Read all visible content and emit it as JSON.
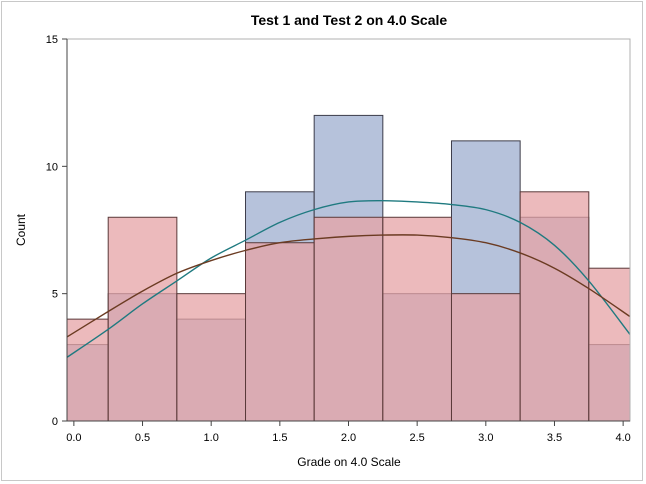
{
  "chart_data": {
    "type": "bar",
    "title": "Test 1 and Test 2 on 4.0 Scale",
    "xlabel": "Grade on 4.0 Scale",
    "ylabel": "Count",
    "xlim": [
      -0.05,
      4.05
    ],
    "ylim": [
      0,
      15
    ],
    "x_ticks": [
      "0.0",
      "0.5",
      "1.0",
      "1.5",
      "2.0",
      "2.5",
      "3.0",
      "3.5",
      "4.0"
    ],
    "y_ticks": [
      "0",
      "5",
      "10",
      "15"
    ],
    "grid": false,
    "legend": "none",
    "series": [
      {
        "color": "#a9b7d5",
        "edge_color": "#3d3d4a",
        "opacity": 0.85,
        "bins": [
          {
            "from": -0.05,
            "to": 0.25,
            "value": 3
          },
          {
            "from": 0.25,
            "to": 0.75,
            "value": 5
          },
          {
            "from": 0.75,
            "to": 1.25,
            "value": 4
          },
          {
            "from": 1.25,
            "to": 1.75,
            "value": 9
          },
          {
            "from": 1.75,
            "to": 2.25,
            "value": 12
          },
          {
            "from": 2.25,
            "to": 2.75,
            "value": 5
          },
          {
            "from": 2.75,
            "to": 3.25,
            "value": 11
          },
          {
            "from": 3.25,
            "to": 3.75,
            "value": 8
          },
          {
            "from": 3.75,
            "to": 4.05,
            "value": 3
          }
        ],
        "curve_color": "#1f7a80",
        "curve": [
          [
            -0.05,
            2.5
          ],
          [
            0.25,
            3.6
          ],
          [
            0.5,
            4.6
          ],
          [
            0.75,
            5.5
          ],
          [
            1.0,
            6.4
          ],
          [
            1.25,
            7.1
          ],
          [
            1.5,
            7.8
          ],
          [
            1.75,
            8.3
          ],
          [
            2.0,
            8.6
          ],
          [
            2.25,
            8.65
          ],
          [
            2.5,
            8.6
          ],
          [
            2.75,
            8.5
          ],
          [
            3.0,
            8.3
          ],
          [
            3.25,
            7.8
          ],
          [
            3.5,
            6.9
          ],
          [
            3.75,
            5.5
          ],
          [
            4.05,
            3.4
          ]
        ]
      },
      {
        "color": "#e6a3a6",
        "edge_color": "#5a3a3a",
        "opacity": 0.75,
        "bins": [
          {
            "from": -0.05,
            "to": 0.25,
            "value": 4
          },
          {
            "from": 0.25,
            "to": 0.75,
            "value": 8
          },
          {
            "from": 0.75,
            "to": 1.25,
            "value": 5
          },
          {
            "from": 1.25,
            "to": 1.75,
            "value": 7
          },
          {
            "from": 1.75,
            "to": 2.25,
            "value": 8
          },
          {
            "from": 2.25,
            "to": 2.75,
            "value": 8
          },
          {
            "from": 2.75,
            "to": 3.25,
            "value": 5
          },
          {
            "from": 3.25,
            "to": 3.75,
            "value": 9
          },
          {
            "from": 3.75,
            "to": 4.05,
            "value": 6
          }
        ],
        "curve_color": "#6b3b22",
        "curve": [
          [
            -0.05,
            3.3
          ],
          [
            0.25,
            4.3
          ],
          [
            0.5,
            5.1
          ],
          [
            0.75,
            5.8
          ],
          [
            1.0,
            6.3
          ],
          [
            1.25,
            6.7
          ],
          [
            1.5,
            7.0
          ],
          [
            1.75,
            7.15
          ],
          [
            2.0,
            7.25
          ],
          [
            2.25,
            7.3
          ],
          [
            2.5,
            7.3
          ],
          [
            2.75,
            7.2
          ],
          [
            3.0,
            7.0
          ],
          [
            3.25,
            6.6
          ],
          [
            3.5,
            6.0
          ],
          [
            3.75,
            5.2
          ],
          [
            4.05,
            4.1
          ]
        ]
      }
    ]
  }
}
